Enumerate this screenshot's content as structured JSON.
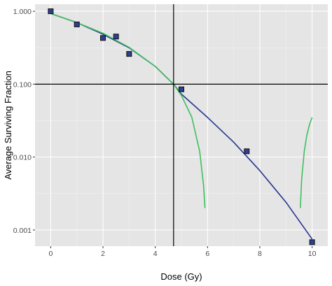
{
  "chart_data": {
    "type": "scatter",
    "title": "",
    "xlabel": "Dose (Gy)",
    "ylabel": "Average Surviving Fraction",
    "xlim": [
      -0.6,
      10.6
    ],
    "ylim": [
      0.0006,
      1.25
    ],
    "y_scale": "log10",
    "x_ticks": [
      0,
      2,
      4,
      6,
      8,
      10
    ],
    "x_tick_labels": [
      "0",
      "2",
      "4",
      "6",
      "8",
      "10"
    ],
    "y_ticks": [
      1,
      0.1,
      0.01,
      0.001
    ],
    "y_tick_labels": [
      "1.000",
      "0.100",
      "0.010",
      "0.001"
    ],
    "grid": true,
    "legend": "none",
    "colors": {
      "panel": "#e5e5e5",
      "grid_major": "#ffffff",
      "grid_minor": "#f2f2f2",
      "point_fill": "#2e3f8f",
      "point_stroke": "#111111",
      "blue_curve": "#283593",
      "green_curve": "#3fbf5f",
      "reference_lines": "#000000"
    },
    "points": {
      "x": [
        0,
        1,
        2,
        2.5,
        3,
        5,
        7.5,
        10
      ],
      "y": [
        1.0,
        0.66,
        0.43,
        0.45,
        0.26,
        0.085,
        0.012,
        0.00068
      ]
    },
    "series": [
      {
        "color": "blue",
        "x": [
          0,
          1,
          2,
          3,
          4,
          4.7,
          5,
          6,
          7,
          8,
          9,
          10
        ],
        "y": [
          0.93,
          0.7,
          0.485,
          0.315,
          0.175,
          0.1,
          0.073,
          0.035,
          0.016,
          0.0065,
          0.0024,
          0.00075
        ]
      },
      {
        "color": "green",
        "x": [
          0,
          1,
          2,
          3,
          4,
          4.7,
          5,
          5.4,
          5.7,
          5.85,
          5.9
        ],
        "y": [
          0.93,
          0.7,
          0.5,
          0.32,
          0.175,
          0.1,
          0.07,
          0.035,
          0.012,
          0.004,
          0.002
        ]
      },
      {
        "color": "green",
        "x": [
          9.55,
          9.6,
          9.7,
          9.8,
          9.9,
          10.0
        ],
        "y": [
          0.002,
          0.005,
          0.012,
          0.02,
          0.028,
          0.035
        ]
      }
    ],
    "reference_lines": {
      "vertical_x": 4.7,
      "horizontal_y": 0.1
    }
  }
}
